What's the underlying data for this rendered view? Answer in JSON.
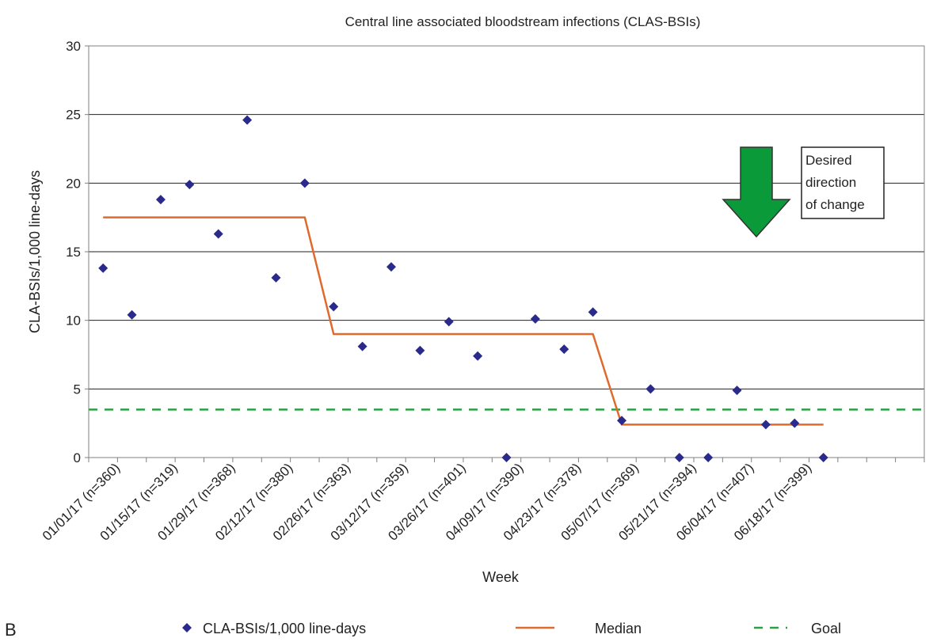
{
  "panel_label": "B",
  "chart_data": {
    "type": "scatter",
    "title": "Central line associated bloodstream infections (CLAS-BSIs)",
    "xlabel": "Week",
    "ylabel": "CLA-BSIs/1,000 line-days",
    "ylim": [
      0,
      30
    ],
    "y_ticks": [
      0,
      5,
      10,
      15,
      20,
      25,
      30
    ],
    "grid": "horizontal",
    "legend_position": "bottom",
    "x_tick_labels": [
      "01/01/17 (n=360)",
      "01/15/17 (n=319)",
      "01/29/17 (n=368)",
      "02/12/17 (n=380)",
      "02/26/17 (n=363)",
      "03/12/17 (n=359)",
      "03/26/17 (n=401)",
      "04/09/17 (n=390)",
      "04/23/17 (n=378)",
      "05/07/17 (n=369)",
      "05/21/17 (n=394)",
      "06/04/17 (n=407)",
      "06/18/17 (n=399)"
    ],
    "n_weeks": 26,
    "series": [
      {
        "name": "CLA-BSIs/1,000 line-days",
        "marker": "diamond",
        "color": "#2a2a8c",
        "values": [
          13.8,
          10.4,
          18.8,
          19.9,
          16.3,
          24.6,
          13.1,
          20.0,
          11.0,
          8.1,
          13.9,
          7.8,
          9.9,
          7.4,
          0.0,
          10.1,
          7.9,
          10.6,
          2.7,
          5.0,
          0.0,
          0.0,
          4.9,
          2.4,
          2.5,
          0.0
        ]
      },
      {
        "name": "Median",
        "type": "line",
        "color": "#e06a2c",
        "points": [
          [
            1,
            17.5
          ],
          [
            8,
            17.5
          ],
          [
            9,
            9.0
          ],
          [
            18,
            9.0
          ],
          [
            19,
            2.4
          ],
          [
            26,
            2.4
          ]
        ]
      },
      {
        "name": "Goal",
        "type": "line",
        "style": "dashed",
        "color": "#2e9e48",
        "value": 3.5
      }
    ],
    "annotation": {
      "lines": [
        "Desired",
        "direction",
        "of change"
      ],
      "arrow_color": "#0a9a3a"
    }
  }
}
